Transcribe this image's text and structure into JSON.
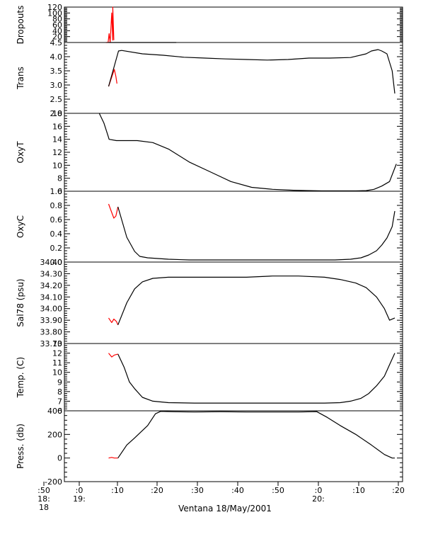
{
  "figure": {
    "x_caption": "Ventana 18/May/2001",
    "x_tick_labels": [
      ":50",
      ":0",
      ":10",
      ":20",
      ":30",
      ":40",
      ":50",
      ":0",
      ":10",
      ":20"
    ],
    "x_date_labels": [
      {
        "lines": [
          "18:",
          "18"
        ]
      },
      {
        "lines": [
          "19:"
        ]
      },
      {
        "lines": [
          "20:"
        ]
      }
    ]
  },
  "chart_data": [
    {
      "type": "line",
      "ylabel": "Dropouts",
      "ylim": [
        0,
        120
      ],
      "yticks": [
        0,
        20,
        40,
        60,
        80,
        100,
        120
      ],
      "ytick_labels": [
        "",
        "20",
        "40",
        "60",
        "80",
        "100",
        "120"
      ],
      "series": [
        {
          "color": "#ff0000",
          "x": [
            18.0,
            18.2,
            18.4,
            18.6,
            18.8,
            19.1,
            19.3,
            19.3,
            19.5
          ],
          "y": [
            0,
            0,
            0,
            30,
            0,
            100,
            8,
            120,
            8
          ]
        },
        {
          "color": "#000000",
          "x": [
            19.0,
            18.5,
            18.5,
            30.5,
            30.5,
            31.5
          ],
          "y": [
            0,
            0,
            0,
            0,
            0,
            0
          ]
        }
      ]
    },
    {
      "type": "line",
      "ylabel": "Trans",
      "ylim": [
        2.0,
        4.5
      ],
      "yticks": [
        2.0,
        2.5,
        3.0,
        3.5,
        4.0,
        4.5
      ],
      "ytick_labels": [
        "2.0",
        "2.5",
        "3.0",
        "3.5",
        "4.0",
        "4.5"
      ],
      "series": [
        {
          "color": "#ff0000",
          "x": [
            18.5,
            19.6,
            19.9,
            20.1
          ],
          "y": [
            2.95,
            3.55,
            3.3,
            3.05
          ]
        },
        {
          "color": "#000000",
          "x": [
            18.5,
            20.4,
            21.0,
            25.0,
            29.0,
            33.0,
            37.0,
            41.0,
            45.0,
            49.0,
            53.0,
            57.0,
            61.0,
            65.0,
            68.0,
            69.0,
            70.3,
            71.0,
            72.0,
            73.0,
            73.5
          ],
          "y": [
            2.95,
            4.2,
            4.22,
            4.1,
            4.05,
            3.98,
            3.95,
            3.92,
            3.9,
            3.88,
            3.9,
            3.95,
            3.95,
            3.97,
            4.1,
            4.2,
            4.25,
            4.2,
            4.1,
            3.5,
            2.7
          ]
        }
      ]
    },
    {
      "type": "line",
      "ylabel": "OxyT",
      "ylim": [
        6,
        18
      ],
      "yticks": [
        6,
        8,
        10,
        12,
        14,
        16,
        18
      ],
      "ytick_labels": [
        "6",
        "8",
        "10",
        "12",
        "14",
        "16",
        "18"
      ],
      "series": [
        {
          "color": "#000000",
          "x": [
            16.7,
            17.6,
            18.4,
            18.6,
            20.0,
            24.0,
            27.0,
            30.0,
            34.0,
            38.0,
            42.0,
            46.0,
            50.0,
            54.0,
            57.0,
            59.5,
            62.0,
            64.0,
            66.0,
            68.0,
            69.5,
            71.0,
            72.5,
            73.8
          ],
          "y": [
            18.0,
            16.5,
            14.5,
            14.0,
            13.8,
            13.8,
            13.5,
            12.5,
            10.5,
            9.0,
            7.5,
            6.6,
            6.3,
            6.15,
            6.1,
            6.05,
            6.05,
            6.05,
            6.05,
            6.1,
            6.3,
            6.8,
            7.5,
            10.2
          ]
        }
      ]
    },
    {
      "type": "line",
      "ylabel": "OxyC",
      "ylim": [
        0.0,
        1.0
      ],
      "yticks": [
        0.0,
        0.2,
        0.4,
        0.6,
        0.8,
        1.0
      ],
      "ytick_labels": [
        "0.0",
        "0.2",
        "0.4",
        "0.6",
        "0.8",
        "1.0"
      ],
      "series": [
        {
          "color": "#ff0000",
          "x": [
            18.5,
            19.1,
            19.5,
            19.9,
            20.3
          ],
          "y": [
            0.82,
            0.7,
            0.62,
            0.65,
            0.78
          ]
        },
        {
          "color": "#000000",
          "x": [
            20.3,
            22.0,
            23.5,
            24.5,
            26.0,
            30.0,
            34.0,
            40.0,
            46.0,
            52.0,
            58.0,
            62.0,
            65.0,
            67.0,
            68.5,
            70.0,
            71.0,
            72.0,
            73.0,
            73.5
          ],
          "y": [
            0.78,
            0.35,
            0.15,
            0.08,
            0.06,
            0.04,
            0.03,
            0.03,
            0.03,
            0.03,
            0.03,
            0.03,
            0.04,
            0.06,
            0.1,
            0.16,
            0.24,
            0.34,
            0.5,
            0.72
          ]
        }
      ]
    },
    {
      "type": "line",
      "ylabel": "Sal78 (psu)",
      "ylim": [
        33.7,
        34.4
      ],
      "yticks": [
        33.7,
        33.8,
        33.9,
        34.0,
        34.1,
        34.2,
        34.3,
        34.4
      ],
      "ytick_labels": [
        "33.70",
        "33.80",
        "33.90",
        "34.00",
        "34.10",
        "34.20",
        "34.30",
        "34.40"
      ],
      "series": [
        {
          "color": "#ff0000",
          "x": [
            18.5,
            19.1,
            19.5,
            20.0,
            20.3
          ],
          "y": [
            33.92,
            33.88,
            33.91,
            33.89,
            33.86
          ]
        },
        {
          "color": "#000000",
          "x": [
            20.3,
            22.0,
            23.5,
            25.0,
            27.0,
            30.0,
            35.0,
            40.0,
            45.0,
            50.0,
            55.0,
            60.0,
            63.0,
            66.0,
            68.0,
            70.0,
            71.5,
            72.5,
            73.5
          ],
          "y": [
            33.86,
            34.05,
            34.17,
            34.23,
            34.26,
            34.27,
            34.27,
            34.27,
            34.27,
            34.28,
            34.28,
            34.27,
            34.25,
            34.22,
            34.18,
            34.1,
            34.0,
            33.9,
            33.92
          ]
        }
      ]
    },
    {
      "type": "line",
      "ylabel": "Temp. (C)",
      "ylim": [
        6,
        13
      ],
      "yticks": [
        6,
        7,
        8,
        9,
        10,
        11,
        12,
        13
      ],
      "ytick_labels": [
        "6",
        "7",
        "8",
        "9",
        "10",
        "11",
        "12",
        "13"
      ],
      "series": [
        {
          "color": "#ff0000",
          "x": [
            18.5,
            19.1,
            19.6,
            20.3
          ],
          "y": [
            12.0,
            11.6,
            11.8,
            11.9
          ]
        },
        {
          "color": "#000000",
          "x": [
            20.3,
            21.5,
            22.5,
            23.5,
            25.0,
            27.0,
            30.0,
            35.0,
            40.0,
            45.0,
            50.0,
            55.0,
            60.0,
            63.0,
            65.0,
            67.0,
            68.5,
            70.0,
            71.5,
            72.5,
            73.5
          ],
          "y": [
            11.9,
            10.5,
            9.0,
            8.3,
            7.4,
            7.0,
            6.85,
            6.8,
            6.8,
            6.8,
            6.8,
            6.8,
            6.8,
            6.85,
            7.0,
            7.3,
            7.8,
            8.6,
            9.6,
            10.8,
            12.0
          ]
        }
      ]
    },
    {
      "type": "line",
      "ylabel": "Press. (db)",
      "ylim": [
        -200,
        400
      ],
      "yticks": [
        -200,
        0,
        200,
        400
      ],
      "ytick_labels": [
        "-200",
        "0",
        "200",
        "400"
      ],
      "series": [
        {
          "color": "#ff0000",
          "x": [
            18.5,
            19.1,
            19.6,
            20.3
          ],
          "y": [
            0,
            5,
            0,
            0
          ]
        },
        {
          "color": "#000000",
          "x": [
            20.3,
            22.0,
            23.5,
            26.0,
            27.5,
            28.5,
            31.0,
            35.0,
            40.0,
            45.0,
            50.0,
            55.0,
            58.5,
            60.5,
            63.0,
            66.0,
            69.0,
            71.5,
            73.0,
            73.5
          ],
          "y": [
            0,
            110,
            170,
            275,
            375,
            395,
            392,
            390,
            392,
            390,
            390,
            390,
            393,
            345,
            275,
            200,
            110,
            30,
            0,
            0
          ]
        }
      ]
    }
  ]
}
